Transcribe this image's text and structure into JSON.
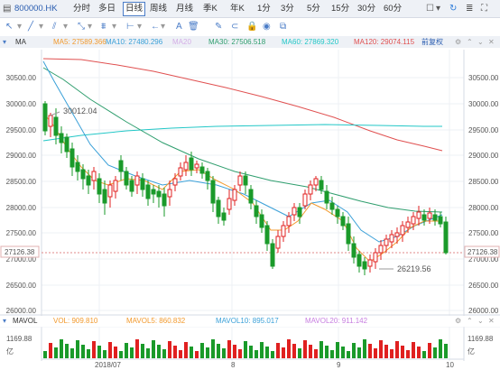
{
  "toolbar": {
    "symbol": "800000.HK",
    "periods": [
      "分时",
      "多日",
      "日线",
      "周线",
      "月线",
      "季K",
      "年K",
      "1分",
      "3分",
      "5分",
      "15分",
      "30分",
      "60分"
    ],
    "active_period": "日线"
  },
  "ma": {
    "label": "MA",
    "ma5": "MA5: 27589.366",
    "ma10": "MA10: 27480.296",
    "ma20": "MA20",
    "ma30": "MA30: 27506.518",
    "ma60": "MA60: 27869.320",
    "ma120": "MA120: 29074.115",
    "adjust": "前复权",
    "colors": {
      "ma5": "#f29a2e",
      "ma10": "#3aa0d8",
      "ma20": "#c77ee0",
      "ma30": "#2f9e6e",
      "ma60": "#22c7c7",
      "ma120": "#e05050"
    }
  },
  "price_axis": {
    "ticks": [
      "30500.00",
      "30000.00",
      "29500.00",
      "29000.00",
      "28500.00",
      "28000.00",
      "27500.00",
      "27000.00",
      "26500.00",
      "26000.00"
    ],
    "current": "27126.38"
  },
  "annotations": {
    "high": "30012.04",
    "low": "26219.56"
  },
  "volume": {
    "label": "MAVOL",
    "vol": "VOL: 909.810",
    "mavol5": "MAVOL5: 860.832",
    "mavol10": "MAVOL10: 895.017",
    "mavol20": "MAVOL20: 911.142",
    "axis_top": "1169.88",
    "axis_unit": "亿"
  },
  "xaxis": {
    "labels": [
      "2018/07",
      "8",
      "9",
      "10"
    ]
  },
  "colors": {
    "up": "#e02020",
    "down": "#1a9a2a"
  }
}
